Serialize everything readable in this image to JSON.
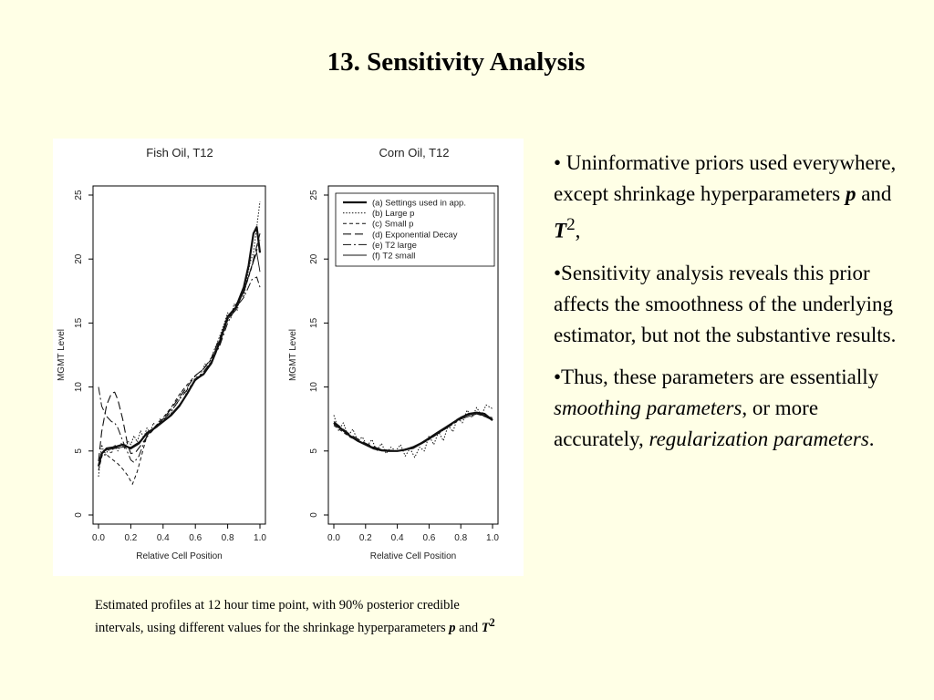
{
  "slide": {
    "title": "13. Sensitivity Analysis"
  },
  "bullets": {
    "b1": {
      "prefix": "• Uninformative priors used everywhere, except shrinkage hyperparameters ",
      "p": "p",
      "and": " and ",
      "T": "T",
      "sup": "2",
      "suffix": ","
    },
    "b2": "•Sensitivity analysis reveals this prior affects the smoothness of the underlying estimator, but not the substantive results.",
    "b3": {
      "prefix": "•Thus, these parameters are essentially ",
      "em1": "smoothing parameters",
      "mid": ", or more accurately, ",
      "em2": "regularization parameters",
      "suffix": "."
    }
  },
  "caption": {
    "text": "Estimated profiles at 12 hour time point, with 90% posterior credible intervals, using different values for the shrinkage hyperparameters ",
    "p": "p",
    "and": " and ",
    "T": "T",
    "sup": "2"
  },
  "chart_data": [
    {
      "type": "line",
      "title": "Fish Oil, T12",
      "xlabel": "Relative Cell Position",
      "ylabel": "MGMT Level",
      "xlim": [
        0,
        1
      ],
      "ylim": [
        0,
        25
      ],
      "xticks": [
        "0.0",
        "0.2",
        "0.4",
        "0.6",
        "0.8",
        "1.0"
      ],
      "yticks": [
        "0",
        "5",
        "10",
        "15",
        "20",
        "25"
      ],
      "grid": false,
      "series": [
        {
          "style": "solid-thick",
          "x": [
            0.0,
            0.02,
            0.05,
            0.1,
            0.15,
            0.2,
            0.25,
            0.3,
            0.35,
            0.4,
            0.45,
            0.5,
            0.55,
            0.6,
            0.65,
            0.7,
            0.75,
            0.8,
            0.85,
            0.9,
            0.93,
            0.96,
            0.98,
            1.0
          ],
          "y": [
            3.8,
            4.8,
            5.2,
            5.3,
            5.5,
            5.2,
            5.6,
            6.4,
            6.8,
            7.3,
            7.8,
            8.5,
            9.5,
            10.6,
            11.0,
            11.9,
            13.5,
            15.5,
            16.2,
            17.8,
            19.5,
            22.0,
            22.5,
            20.5
          ]
        },
        {
          "style": "dotted",
          "x": [
            0.0,
            0.02,
            0.04,
            0.06,
            0.08,
            0.1,
            0.12,
            0.14,
            0.16,
            0.18,
            0.2,
            0.22,
            0.24,
            0.26,
            0.28,
            0.3,
            0.32,
            0.34,
            0.36,
            0.38,
            0.4,
            0.42,
            0.44,
            0.46,
            0.48,
            0.5,
            0.52,
            0.54,
            0.56,
            0.58,
            0.6,
            0.62,
            0.64,
            0.66,
            0.68,
            0.7,
            0.72,
            0.74,
            0.76,
            0.78,
            0.8,
            0.82,
            0.84,
            0.86,
            0.88,
            0.9,
            0.92,
            0.94,
            0.96,
            0.98,
            1.0
          ],
          "y": [
            3.0,
            5.5,
            4.6,
            5.1,
            4.8,
            5.5,
            5.0,
            5.6,
            5.2,
            5.8,
            5.5,
            6.2,
            5.7,
            6.6,
            6.0,
            6.8,
            6.4,
            7.2,
            6.8,
            7.5,
            7.2,
            7.9,
            7.6,
            8.3,
            8.6,
            9.0,
            9.8,
            9.4,
            10.3,
            10.0,
            10.9,
            10.7,
            11.2,
            11.8,
            11.5,
            12.3,
            13.0,
            13.6,
            14.3,
            15.0,
            15.8,
            15.4,
            16.5,
            16.0,
            17.3,
            17.0,
            18.5,
            19.8,
            20.5,
            22.5,
            24.5
          ]
        },
        {
          "style": "dashed",
          "x": [
            0.0,
            0.03,
            0.06,
            0.09,
            0.12,
            0.15,
            0.18,
            0.21,
            0.24,
            0.27,
            0.3,
            0.35,
            0.4,
            0.45,
            0.5,
            0.55,
            0.6,
            0.65,
            0.7,
            0.75,
            0.8,
            0.85,
            0.9,
            0.95,
            1.0
          ],
          "y": [
            3.5,
            5.0,
            4.6,
            4.3,
            4.0,
            3.6,
            3.1,
            2.4,
            3.4,
            4.8,
            6.2,
            6.9,
            7.6,
            8.4,
            9.4,
            10.2,
            10.9,
            11.4,
            12.2,
            13.6,
            15.2,
            16.4,
            17.4,
            19.4,
            21.5
          ]
        },
        {
          "style": "long-dash",
          "x": [
            0.0,
            0.02,
            0.05,
            0.08,
            0.1,
            0.12,
            0.15,
            0.18,
            0.2,
            0.23,
            0.26,
            0.3,
            0.35,
            0.4,
            0.45,
            0.5,
            0.55,
            0.6,
            0.65,
            0.7,
            0.75,
            0.8,
            0.85,
            0.9,
            0.95,
            1.0
          ],
          "y": [
            4.2,
            6.5,
            8.6,
            9.5,
            9.6,
            9.0,
            7.5,
            5.5,
            4.8,
            4.9,
            5.4,
            6.1,
            6.8,
            7.5,
            8.3,
            9.2,
            10.0,
            10.9,
            11.4,
            12.3,
            13.8,
            15.3,
            16.4,
            17.4,
            19.5,
            22.0
          ]
        },
        {
          "style": "dash-dot",
          "x": [
            0.0,
            0.02,
            0.05,
            0.08,
            0.1,
            0.12,
            0.15,
            0.18,
            0.2,
            0.22,
            0.25,
            0.28,
            0.3,
            0.35,
            0.4,
            0.45,
            0.5,
            0.55,
            0.6,
            0.65,
            0.7,
            0.75,
            0.8,
            0.85,
            0.9,
            0.95,
            0.98,
            1.0
          ],
          "y": [
            10.0,
            8.5,
            7.7,
            7.3,
            7.2,
            6.8,
            5.8,
            4.9,
            4.3,
            4.1,
            4.6,
            5.6,
            6.2,
            6.9,
            7.4,
            8.1,
            9.0,
            9.8,
            10.5,
            11.2,
            12.0,
            13.2,
            15.0,
            16.2,
            17.0,
            18.4,
            18.6,
            17.8
          ]
        },
        {
          "style": "solid-thin",
          "x": [
            0.0,
            0.03,
            0.06,
            0.1,
            0.15,
            0.2,
            0.25,
            0.3,
            0.35,
            0.4,
            0.45,
            0.5,
            0.55,
            0.6,
            0.65,
            0.7,
            0.75,
            0.8,
            0.85,
            0.9,
            0.95,
            0.98,
            1.0
          ],
          "y": [
            4.3,
            5.0,
            5.1,
            5.2,
            5.3,
            5.3,
            5.7,
            6.3,
            6.8,
            7.3,
            7.9,
            8.6,
            9.5,
            10.5,
            11.0,
            11.8,
            13.4,
            15.3,
            16.0,
            17.5,
            19.5,
            20.5,
            19.0
          ]
        }
      ]
    },
    {
      "type": "line",
      "title": "Corn Oil, T12",
      "xlabel": "Relative Cell Position",
      "ylabel": "MGMT Level",
      "xlim": [
        0,
        1
      ],
      "ylim": [
        0,
        25
      ],
      "xticks": [
        "0.0",
        "0.2",
        "0.4",
        "0.6",
        "0.8",
        "1.0"
      ],
      "yticks": [
        "0",
        "5",
        "10",
        "15",
        "20",
        "25"
      ],
      "grid": false,
      "legend_position": "top",
      "legend": [
        "(a) Settings used in app.",
        "(b) Large p",
        "(c) Small p",
        "(d) Exponential Decay",
        "(e) T2 large",
        "(f) T2 small"
      ],
      "series": [
        {
          "name": "(a) Settings used in app.",
          "style": "solid-thick",
          "x": [
            0.0,
            0.05,
            0.1,
            0.15,
            0.2,
            0.25,
            0.3,
            0.35,
            0.4,
            0.45,
            0.5,
            0.55,
            0.6,
            0.65,
            0.7,
            0.75,
            0.8,
            0.85,
            0.9,
            0.95,
            1.0
          ],
          "y": [
            7.2,
            6.7,
            6.2,
            5.8,
            5.5,
            5.2,
            5.05,
            5.0,
            5.0,
            5.1,
            5.3,
            5.6,
            6.0,
            6.4,
            6.8,
            7.2,
            7.6,
            7.9,
            8.0,
            7.9,
            7.4
          ]
        },
        {
          "name": "(b) Large p",
          "style": "dotted",
          "x": [
            0.0,
            0.03,
            0.06,
            0.09,
            0.12,
            0.15,
            0.18,
            0.21,
            0.24,
            0.27,
            0.3,
            0.33,
            0.36,
            0.39,
            0.42,
            0.45,
            0.48,
            0.51,
            0.54,
            0.57,
            0.6,
            0.63,
            0.66,
            0.69,
            0.72,
            0.75,
            0.78,
            0.81,
            0.84,
            0.87,
            0.9,
            0.93,
            0.96,
            1.0
          ],
          "y": [
            7.8,
            6.6,
            7.2,
            6.2,
            6.7,
            5.8,
            6.1,
            5.4,
            5.9,
            5.0,
            5.6,
            4.8,
            5.3,
            5.0,
            5.5,
            4.6,
            5.2,
            4.5,
            5.3,
            5.0,
            6.2,
            5.5,
            6.5,
            5.8,
            7.0,
            6.5,
            7.6,
            7.2,
            8.2,
            7.6,
            8.4,
            7.8,
            8.6,
            8.3
          ]
        },
        {
          "name": "(c) Small p",
          "style": "dashed",
          "x": [
            0.0,
            0.1,
            0.2,
            0.3,
            0.4,
            0.5,
            0.6,
            0.7,
            0.8,
            0.9,
            1.0
          ],
          "y": [
            7.0,
            6.1,
            5.5,
            5.1,
            5.0,
            5.2,
            5.9,
            6.7,
            7.5,
            7.9,
            7.6
          ]
        },
        {
          "name": "(d) Exponential Decay",
          "style": "long-dash",
          "x": [
            0.0,
            0.1,
            0.2,
            0.3,
            0.4,
            0.5,
            0.6,
            0.7,
            0.8,
            0.9,
            1.0
          ],
          "y": [
            7.3,
            6.3,
            5.6,
            5.1,
            5.0,
            5.2,
            5.9,
            6.8,
            7.6,
            8.0,
            7.5
          ]
        },
        {
          "name": "(e) T2 large",
          "style": "dash-dot",
          "x": [
            0.0,
            0.1,
            0.2,
            0.3,
            0.4,
            0.5,
            0.6,
            0.7,
            0.8,
            0.9,
            1.0
          ],
          "y": [
            7.1,
            6.2,
            5.5,
            5.1,
            5.0,
            5.3,
            5.9,
            6.7,
            7.5,
            7.9,
            7.5
          ]
        },
        {
          "name": "(f) T2 small",
          "style": "solid-thin",
          "x": [
            0.0,
            0.1,
            0.2,
            0.3,
            0.4,
            0.5,
            0.6,
            0.7,
            0.8,
            0.9,
            1.0
          ],
          "y": [
            7.2,
            6.2,
            5.5,
            5.1,
            5.0,
            5.3,
            6.0,
            6.8,
            7.6,
            8.0,
            7.4
          ]
        }
      ]
    }
  ]
}
